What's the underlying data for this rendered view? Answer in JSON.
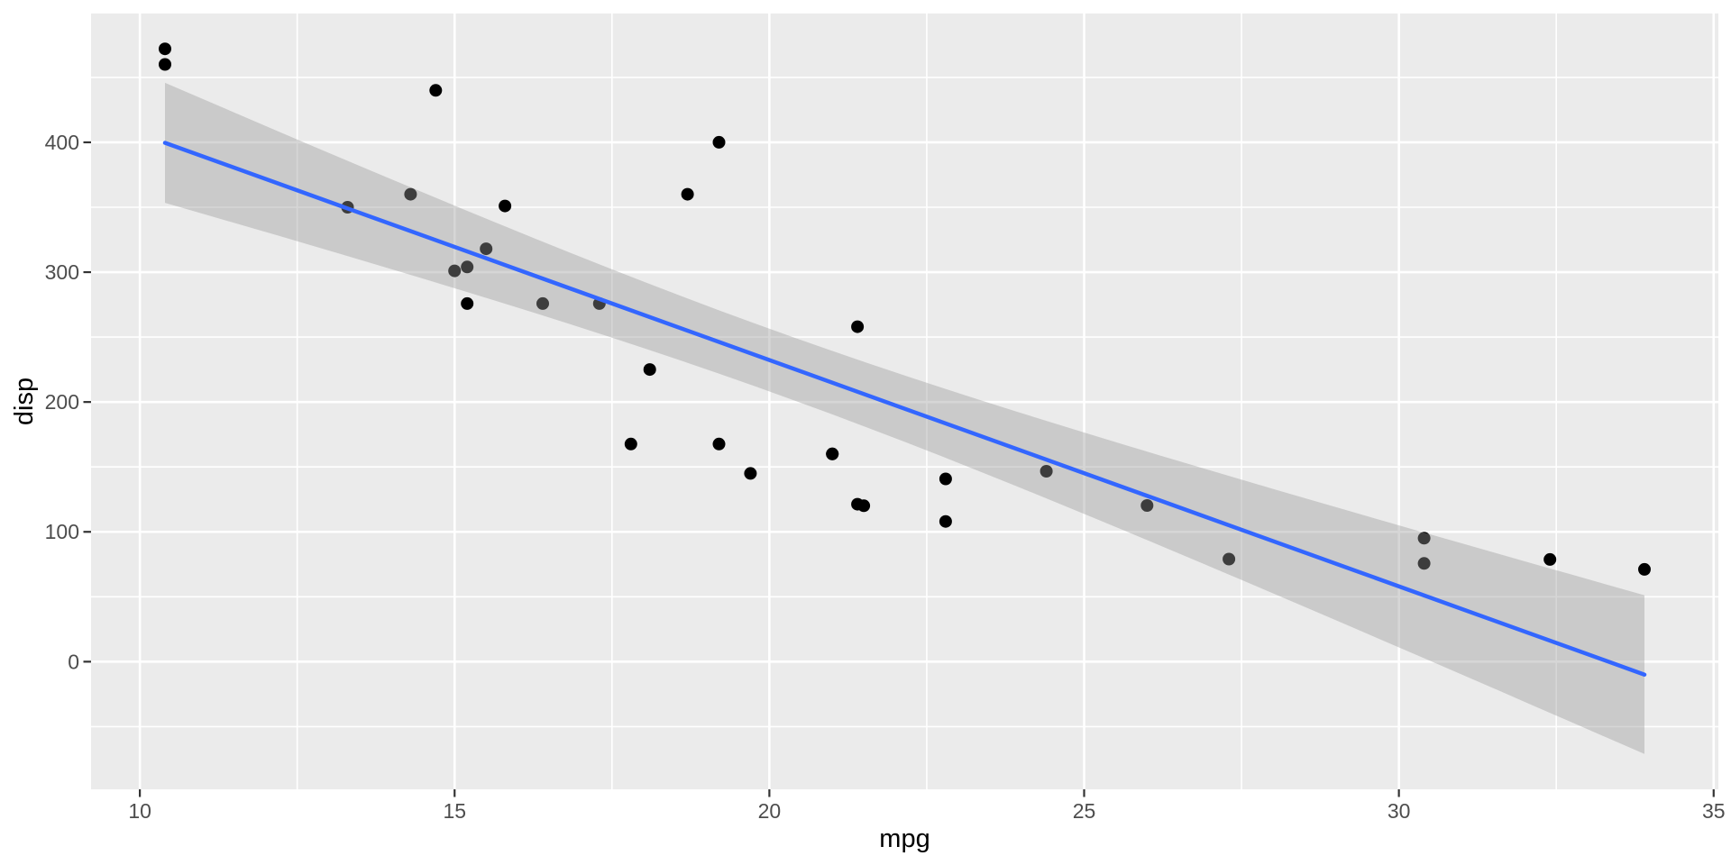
{
  "chart_data": {
    "type": "scatter",
    "title": "",
    "xlabel": "mpg",
    "ylabel": "disp",
    "xlim": [
      9.225,
      35.075
    ],
    "ylim": [
      -98.3,
      499.2
    ],
    "x_major_ticks": [
      10,
      15,
      20,
      25,
      30,
      35
    ],
    "x_minor_ticks": [
      12.5,
      17.5,
      22.5,
      27.5,
      32.5
    ],
    "y_major_ticks": [
      0,
      100,
      200,
      300,
      400
    ],
    "y_minor_ticks": [
      -50,
      50,
      150,
      250,
      350,
      450
    ],
    "grid": true,
    "legend": "none",
    "points": [
      [
        21.0,
        160.0
      ],
      [
        21.0,
        160.0
      ],
      [
        22.8,
        108.0
      ],
      [
        21.4,
        258.0
      ],
      [
        18.7,
        360.0
      ],
      [
        18.1,
        225.0
      ],
      [
        14.3,
        360.0
      ],
      [
        24.4,
        146.7
      ],
      [
        22.8,
        140.8
      ],
      [
        19.2,
        167.6
      ],
      [
        17.8,
        167.6
      ],
      [
        16.4,
        275.8
      ],
      [
        17.3,
        275.8
      ],
      [
        15.2,
        275.8
      ],
      [
        10.4,
        472.0
      ],
      [
        10.4,
        460.0
      ],
      [
        14.7,
        440.0
      ],
      [
        32.4,
        78.7
      ],
      [
        30.4,
        75.7
      ],
      [
        33.9,
        71.1
      ],
      [
        21.5,
        120.1
      ],
      [
        15.5,
        318.0
      ],
      [
        15.2,
        304.0
      ],
      [
        13.3,
        350.0
      ],
      [
        19.2,
        400.0
      ],
      [
        27.3,
        79.0
      ],
      [
        26.0,
        120.3
      ],
      [
        30.4,
        95.1
      ],
      [
        15.8,
        351.0
      ],
      [
        19.7,
        145.0
      ],
      [
        15.0,
        301.0
      ],
      [
        21.4,
        121.3
      ]
    ],
    "smooth": {
      "method": "lm",
      "intercept": 580.884,
      "slope": -17.429,
      "x_range": [
        10.4,
        33.9
      ],
      "ci_level": 0.95,
      "t_crit": 2.042,
      "resid_se": 66.87,
      "n": 32,
      "x_mean": 20.091,
      "sxx": 1126.05
    },
    "style": {
      "background": "#FFFFFF",
      "panel_bg": "#EBEBEB",
      "grid_color": "#FFFFFF",
      "ribbon_fill": "#999999",
      "ribbon_opacity": 0.4,
      "line_color": "#3366FF",
      "point_color": "#000000",
      "tick_mark_color": "#333333",
      "tick_label_color": "#4D4D4D",
      "axis_title_color": "#000000"
    }
  }
}
